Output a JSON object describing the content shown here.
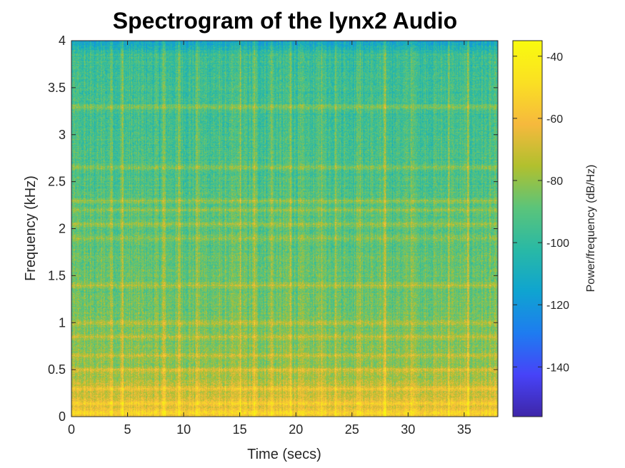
{
  "chart_data": {
    "type": "heatmap",
    "title": "Spectrogram of the lynx2 Audio",
    "xlabel": "Time (secs)",
    "ylabel": "Frequency (kHz)",
    "xlim": [
      0,
      38
    ],
    "ylim": [
      0,
      4
    ],
    "xticks": [
      0,
      5,
      10,
      15,
      20,
      25,
      30,
      35
    ],
    "yticks": [
      0,
      0.5,
      1,
      1.5,
      2,
      2.5,
      3,
      3.5,
      4
    ],
    "colorbar": {
      "label": "Power/frequency (dB/Hz)",
      "range": [
        -156,
        -35
      ],
      "ticks": [
        -40,
        -60,
        -80,
        -100,
        -120,
        -140
      ],
      "colormap": [
        "#3e26a8",
        "#4743f8",
        "#1e7cf0",
        "#0fa4d0",
        "#29b9a5",
        "#5bc47a",
        "#b1c02e",
        "#f6b93d",
        "#fae023",
        "#f9fb0e"
      ]
    },
    "harmonic_bands_khz": [
      0.05,
      0.15,
      0.3,
      0.5,
      0.65,
      0.85,
      1.0,
      1.4,
      1.9,
      2.05,
      2.2,
      2.3,
      2.65,
      3.3
    ],
    "transient_times_s": [
      3.5,
      4.5,
      8.2,
      9.6,
      11.2,
      15.0,
      16.3,
      17.8,
      19.5,
      22.3,
      23.5,
      25.6,
      27.9,
      30.3,
      33.6,
      35.3
    ]
  }
}
